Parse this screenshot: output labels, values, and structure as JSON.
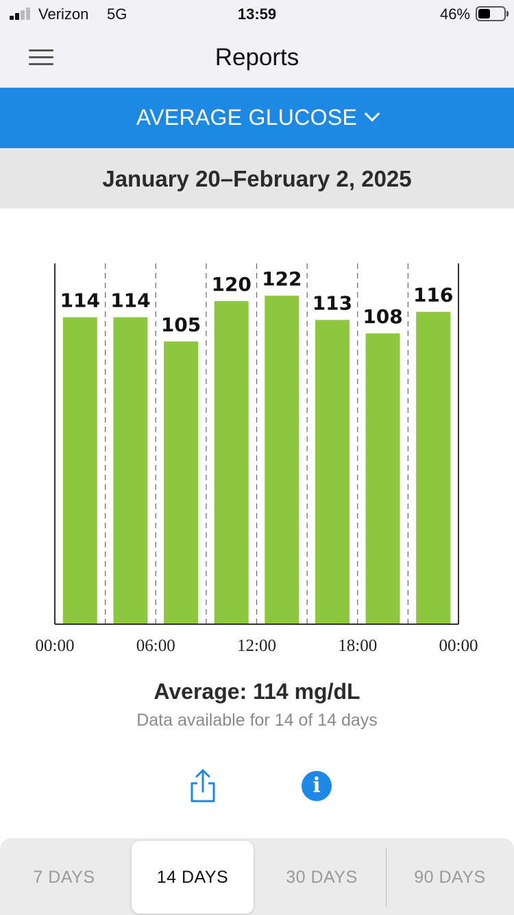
{
  "status_bar": {
    "carrier": "Verizon",
    "network": "5G",
    "time": "13:59",
    "battery_percent_label": "46%",
    "battery_level": 0.46
  },
  "navbar": {
    "title": "Reports"
  },
  "report_selector": {
    "label": "AVERAGE GLUCOSE"
  },
  "date_range": "January 20–February 2, 2025",
  "chart_data": {
    "type": "bar",
    "categories": [
      "00:00–03:00",
      "03:00–06:00",
      "06:00–09:00",
      "09:00–12:00",
      "12:00–15:00",
      "15:00–18:00",
      "18:00–21:00",
      "21:00–24:00"
    ],
    "values": [
      114,
      114,
      105,
      120,
      122,
      113,
      108,
      116
    ],
    "data_labels": [
      "114",
      "114",
      "105",
      "120",
      "122",
      "113",
      "108",
      "116"
    ],
    "x_tick_labels": [
      "00:00",
      "06:00",
      "12:00",
      "18:00",
      "00:00"
    ],
    "ylim": [
      0,
      134
    ],
    "grid": "vertical-dashed",
    "bar_color": "#8dc63f"
  },
  "summary": {
    "average": "Average: 114 mg/dL",
    "availability": "Data available for 14 of 14 days"
  },
  "range_options": [
    "7 DAYS",
    "14 DAYS",
    "30 DAYS",
    "90 DAYS"
  ],
  "selected_range": "14 DAYS",
  "colors": {
    "accent": "#1e88e5",
    "bar": "#8dc63f",
    "header_bg": "#f2f2f4",
    "date_band_bg": "#e6e6e6"
  }
}
